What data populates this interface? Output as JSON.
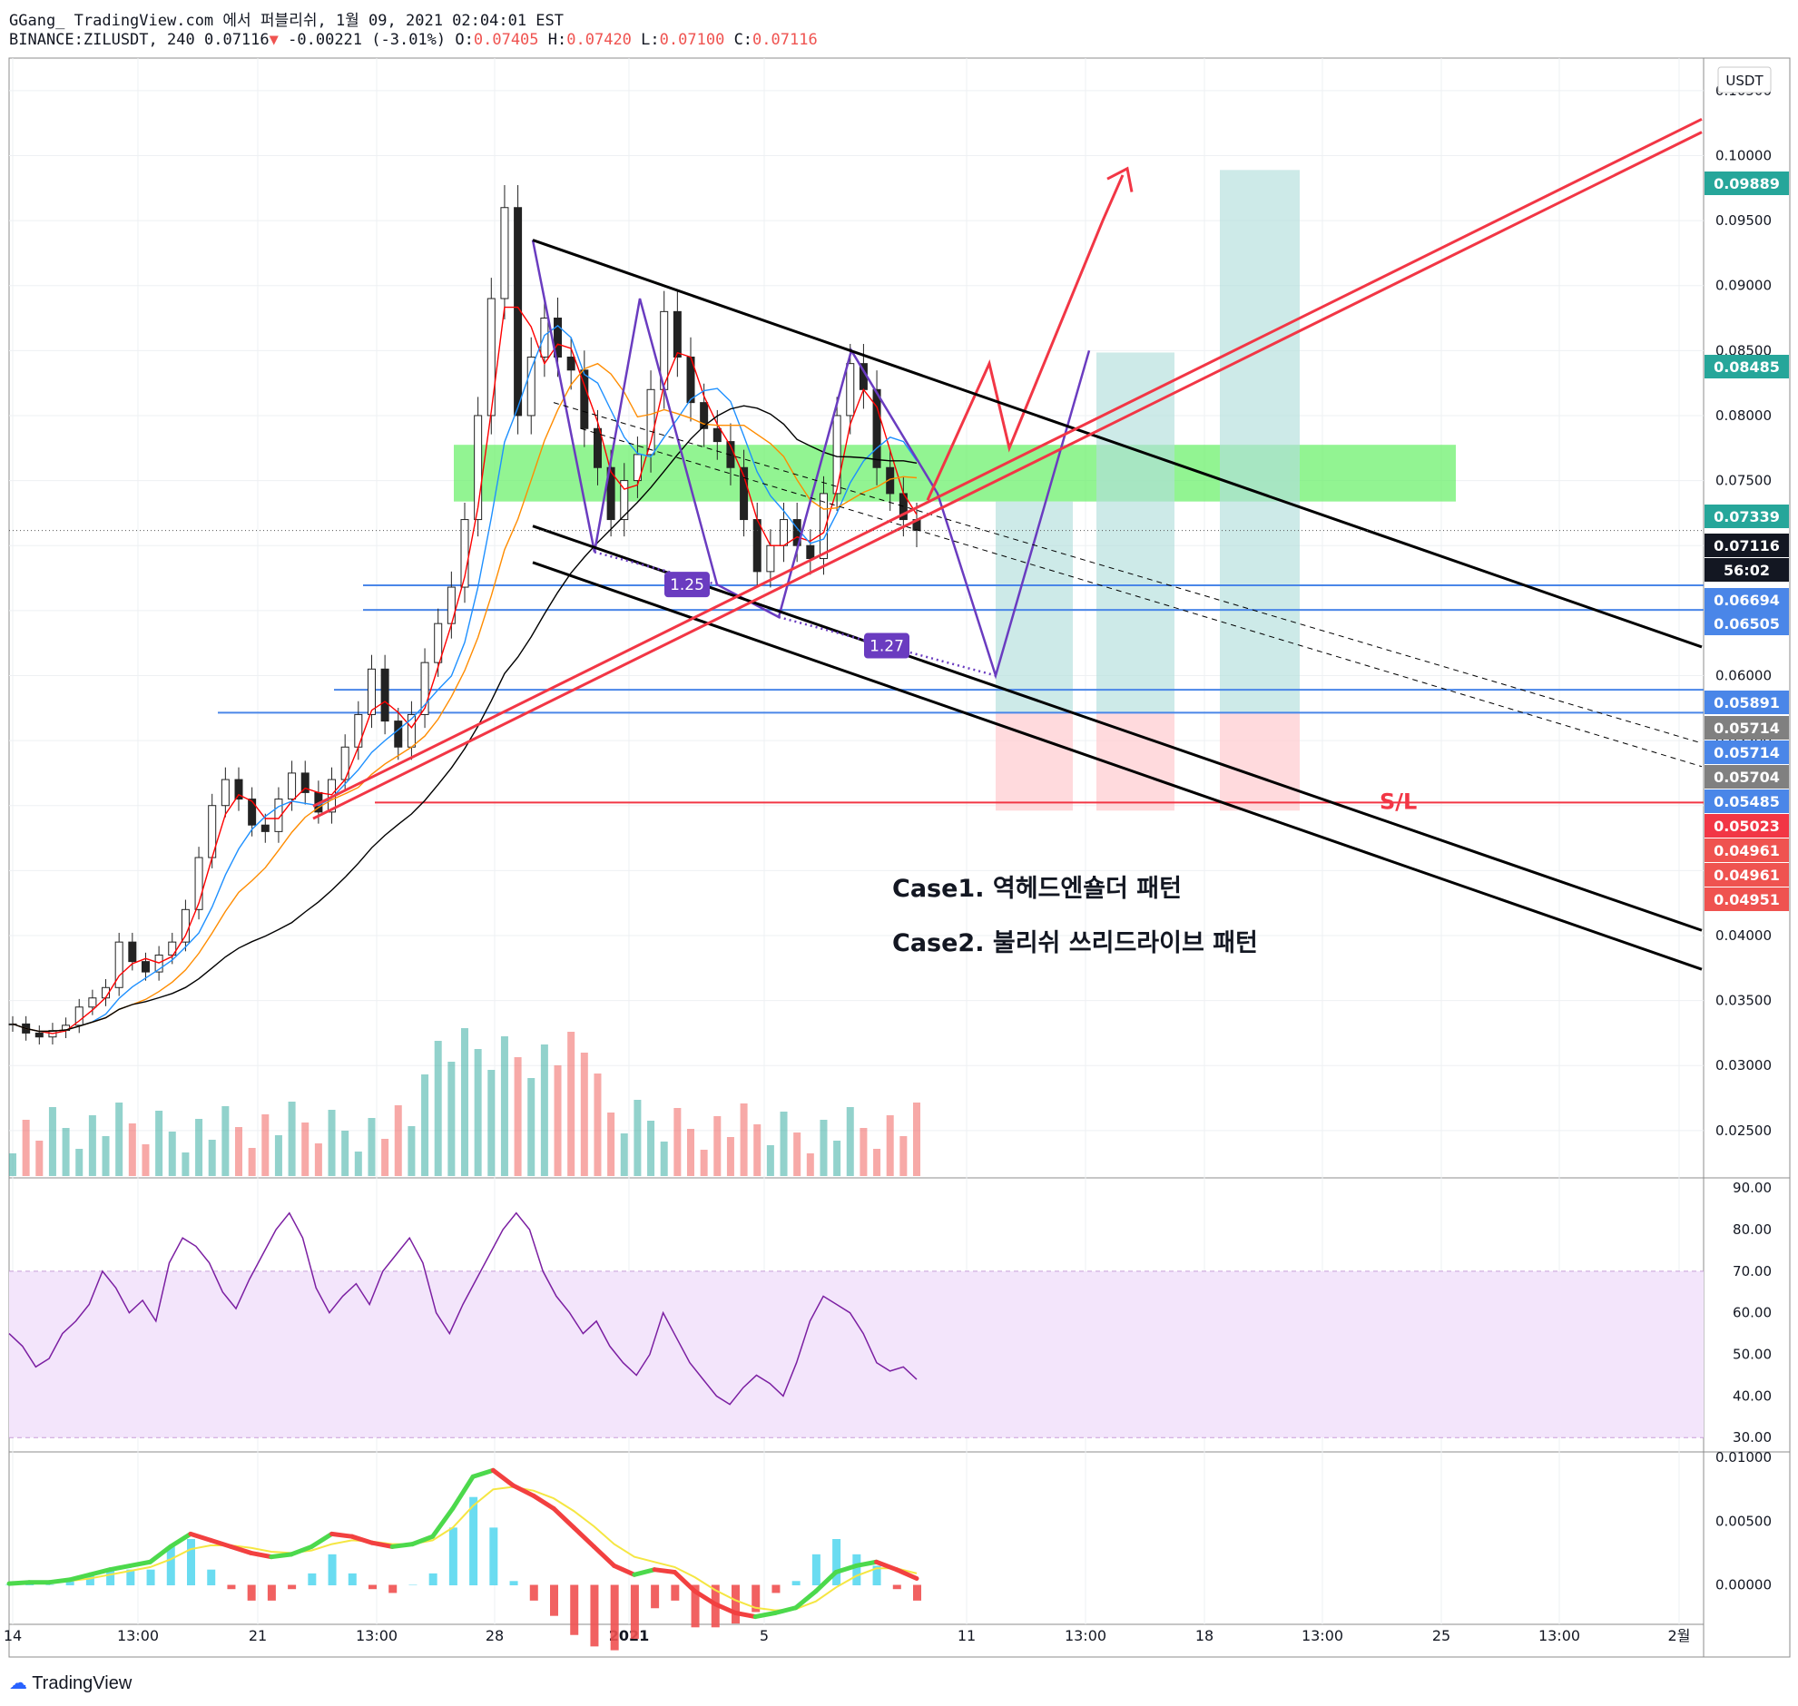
{
  "header": {
    "line1": "GGang_ TradingView.com 에서 퍼블리쉬, 1월 09, 2021 02:04:01 EST",
    "symbol": "BINANCE:ZILUSDT",
    "interval": "240",
    "last": "0.07116",
    "change": "-0.00221 (-3.01%)",
    "o_label": "O:",
    "o": "0.07405",
    "h_label": "H:",
    "h": "0.07420",
    "l_label": "L:",
    "l": "0.07100",
    "c_label": "C:",
    "c": "0.07116"
  },
  "footer": {
    "brand": "TradingView"
  },
  "colors": {
    "up": "#26a69a",
    "down": "#ef5350",
    "zone": "#6ef06e",
    "rsi_band": "#f3e5fb",
    "pattern": "#6a3cc0"
  },
  "chart_data": {
    "type": "candlestick",
    "currency": "USDT",
    "price_axis": {
      "range": [
        0.0215,
        0.1075
      ],
      "ticks": [
        "0.02500",
        "0.03000",
        "0.03500",
        "0.04000",
        "0.04500",
        "0.05000",
        "0.05500",
        "0.06000",
        "0.06500",
        "0.07000",
        "0.07500",
        "0.08000",
        "0.08500",
        "0.09000",
        "0.09500",
        "0.10000",
        "0.10500"
      ]
    },
    "time_axis": {
      "ticks": [
        "14",
        "13:00",
        "21",
        "13:00",
        "28",
        "2021",
        "5",
        "11",
        "13:00",
        "18",
        "13:00",
        "25",
        "13:00",
        "2월"
      ]
    },
    "price_labels": [
      {
        "text": "0.09889",
        "value": 0.09889,
        "color": "#26a69a"
      },
      {
        "text": "0.08485",
        "value": 0.08485,
        "color": "#26a69a"
      },
      {
        "text": "0.07339",
        "value": 0.07339,
        "color": "#26a69a"
      },
      {
        "text": "0.07116",
        "value": 0.07116,
        "color": "#131722"
      },
      {
        "text": "56:02",
        "value": 0.06925,
        "color": "#131722"
      },
      {
        "text": "0.06694",
        "value": 0.06694,
        "color": "#4a86e8"
      },
      {
        "text": "0.06505",
        "value": 0.06505,
        "color": "#4a86e8"
      },
      {
        "text": "0.05891",
        "value": 0.05891,
        "color": "#4a86e8"
      },
      {
        "text": "0.05714",
        "value": 0.05714,
        "color": "#808080"
      },
      {
        "text": "0.05714",
        "value": 0.05714,
        "color": "#4a86e8"
      },
      {
        "text": "0.05704",
        "value": 0.05704,
        "color": "#808080"
      },
      {
        "text": "0.05485",
        "value": 0.05485,
        "color": "#4a86e8"
      },
      {
        "text": "0.05023",
        "value": 0.05023,
        "color": "#f23645"
      },
      {
        "text": "0.04961",
        "value": 0.04961,
        "color": "#ef5350"
      },
      {
        "text": "0.04961",
        "value": 0.04961,
        "color": "#ef5350"
      },
      {
        "text": "0.04951",
        "value": 0.04951,
        "color": "#ef5350"
      }
    ],
    "horizontal_levels": [
      {
        "value": 0.06694,
        "color": "#4a86e8"
      },
      {
        "value": 0.06505,
        "color": "#4a86e8"
      },
      {
        "value": 0.05891,
        "color": "#4a86e8"
      },
      {
        "value": 0.05714,
        "color": "#4a86e8"
      },
      {
        "value": 0.05023,
        "color": "#f23645",
        "label": "S/L"
      }
    ],
    "supply_zone": {
      "from": 0.07339,
      "to": 0.07775
    },
    "fib_labels": [
      "1.25",
      "1.27"
    ],
    "annotations": [
      "Case1. 역헤드엔숄더 패턴",
      "Case2. 불리쉬 쓰리드라이브 패턴"
    ],
    "close_series": [
      0.0332,
      0.0325,
      0.0322,
      0.0327,
      0.0331,
      0.0345,
      0.0352,
      0.036,
      0.0395,
      0.038,
      0.0372,
      0.0385,
      0.0395,
      0.042,
      0.046,
      0.05,
      0.052,
      0.0505,
      0.0485,
      0.048,
      0.0505,
      0.0525,
      0.051,
      0.0495,
      0.052,
      0.0545,
      0.057,
      0.0605,
      0.0565,
      0.0545,
      0.057,
      0.061,
      0.064,
      0.0668,
      0.072,
      0.08,
      0.089,
      0.096,
      0.08,
      0.0845,
      0.0875,
      0.0845,
      0.0835,
      0.079,
      0.076,
      0.072,
      0.075,
      0.077,
      0.082,
      0.088,
      0.0845,
      0.081,
      0.079,
      0.078,
      0.076,
      0.072,
      0.068,
      0.07,
      0.072,
      0.07,
      0.069,
      0.074,
      0.08,
      0.084,
      0.082,
      0.076,
      0.074,
      0.072,
      0.07116
    ],
    "rsi": {
      "range": [
        27,
        92
      ],
      "ticks": [
        "30.00",
        "40.00",
        "50.00",
        "60.00",
        "70.00",
        "80.00",
        "90.00"
      ],
      "band": [
        30,
        70
      ],
      "values": [
        55,
        52,
        47,
        49,
        55,
        58,
        62,
        70,
        66,
        60,
        63,
        58,
        72,
        78,
        76,
        72,
        65,
        61,
        68,
        74,
        80,
        84,
        78,
        66,
        60,
        64,
        67,
        62,
        70,
        74,
        78,
        72,
        60,
        55,
        62,
        68,
        74,
        80,
        84,
        80,
        70,
        64,
        60,
        55,
        58,
        52,
        48,
        45,
        50,
        60,
        54,
        48,
        44,
        40,
        38,
        42,
        45,
        43,
        40,
        48,
        58,
        64,
        62,
        60,
        55,
        48,
        46,
        47,
        44
      ]
    },
    "macd": {
      "range": [
        -0.0031,
        0.0103
      ],
      "ticks": [
        "0.00000",
        "0.00500",
        "0.01000"
      ],
      "macd": [
        0.0001,
        0.0002,
        0.0002,
        0.0004,
        0.0008,
        0.0012,
        0.0015,
        0.0018,
        0.003,
        0.004,
        0.0035,
        0.003,
        0.0025,
        0.0022,
        0.0024,
        0.003,
        0.004,
        0.0038,
        0.0033,
        0.003,
        0.0032,
        0.0038,
        0.006,
        0.0085,
        0.009,
        0.0078,
        0.007,
        0.006,
        0.0045,
        0.003,
        0.0015,
        0.0008,
        0.0012,
        0.001,
        -0.0005,
        -0.0015,
        -0.0022,
        -0.0025,
        -0.0022,
        -0.0018,
        -0.0005,
        0.001,
        0.0015,
        0.0018,
        0.0012,
        0.0005
      ],
      "signal": [
        0.0001,
        0.0001,
        0.0002,
        0.0003,
        0.0005,
        0.0008,
        0.0011,
        0.0014,
        0.002,
        0.0028,
        0.0031,
        0.0031,
        0.0029,
        0.0026,
        0.0025,
        0.0027,
        0.0032,
        0.0035,
        0.0034,
        0.0032,
        0.0032,
        0.0035,
        0.0045,
        0.0062,
        0.0075,
        0.0077,
        0.0074,
        0.0068,
        0.0058,
        0.0046,
        0.0032,
        0.0022,
        0.0018,
        0.0014,
        0.0006,
        -0.0004,
        -0.0012,
        -0.0018,
        -0.002,
        -0.0019,
        -0.0013,
        -0.0002,
        0.0007,
        0.0013,
        0.0013,
        0.0009
      ]
    }
  }
}
